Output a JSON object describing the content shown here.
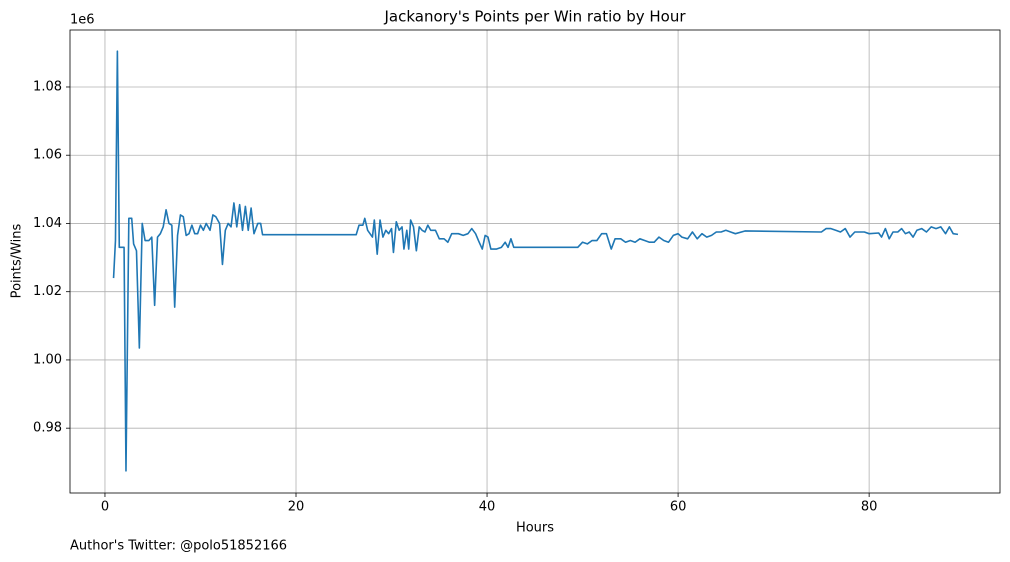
{
  "chart_data": {
    "type": "line",
    "title": "Jackanory's Points per Win ratio by Hour",
    "x_label": "Hours",
    "y_label": "Points/Wins",
    "y_offset_text": "1e6",
    "footnote": "Author's Twitter: @polo51852166",
    "color": "#1f77b4",
    "grid": true,
    "xlim": [
      -3.66,
      93.7
    ],
    "ylim": [
      0.961,
      1.0967
    ],
    "xticks": [
      0,
      20,
      40,
      60,
      80
    ],
    "yticks": [
      0.98,
      {
        "value": 1,
        "label": "1.00"
      },
      1.02,
      1.04,
      1.06,
      1.08
    ],
    "x": [
      0.9,
      1.1,
      1.3,
      1.5,
      2.0,
      2.2,
      2.5,
      2.8,
      3.0,
      3.3,
      3.6,
      3.9,
      4.2,
      4.6,
      4.9,
      5.2,
      5.5,
      5.8,
      6.1,
      6.4,
      6.7,
      7.0,
      7.3,
      7.6,
      7.9,
      8.2,
      8.5,
      8.8,
      9.1,
      9.4,
      9.7,
      10.0,
      10.3,
      10.6,
      11.0,
      11.3,
      11.6,
      12.0,
      12.3,
      12.6,
      12.9,
      13.2,
      13.5,
      13.8,
      14.1,
      14.4,
      14.7,
      15.0,
      15.3,
      15.6,
      16.0,
      16.3,
      16.5,
      26.3,
      26.6,
      27.0,
      27.2,
      27.5,
      28.0,
      28.2,
      28.5,
      28.8,
      29.1,
      29.4,
      29.7,
      30.0,
      30.2,
      30.5,
      30.8,
      31.1,
      31.3,
      31.6,
      31.8,
      32.0,
      32.3,
      32.6,
      32.9,
      33.2,
      33.5,
      33.8,
      34.1,
      34.6,
      35.0,
      35.5,
      35.9,
      36.3,
      37.0,
      37.5,
      38.0,
      38.4,
      38.8,
      39.1,
      39.5,
      39.8,
      40.1,
      40.4,
      41.0,
      41.5,
      41.9,
      42.2,
      42.5,
      42.8,
      49.5,
      50.0,
      50.5,
      51.0,
      51.5,
      52.0,
      52.5,
      53.0,
      53.4,
      54.0,
      54.5,
      55.0,
      55.5,
      56.0,
      56.5,
      57.0,
      57.5,
      58.0,
      58.5,
      59.0,
      59.5,
      60.0,
      60.4,
      61.0,
      61.5,
      62.0,
      62.5,
      63.0,
      63.5,
      64.0,
      64.5,
      65.0,
      65.5,
      66.0,
      67.0,
      75.0,
      75.5,
      76.0,
      76.5,
      77.0,
      77.5,
      78.0,
      78.5,
      79.5,
      80.0,
      81.0,
      81.3,
      81.7,
      82.1,
      82.5,
      83.0,
      83.4,
      83.8,
      84.2,
      84.6,
      85.0,
      85.5,
      86.0,
      86.5,
      87.0,
      87.5,
      88.0,
      88.4,
      88.8,
      89.3
    ],
    "values": [
      1.024,
      1.035,
      1.0905,
      1.033,
      1.033,
      0.9675,
      1.0415,
      1.0415,
      1.034,
      1.032,
      1.0035,
      1.04,
      1.035,
      1.035,
      1.036,
      1.016,
      1.036,
      1.037,
      1.039,
      1.044,
      1.04,
      1.0395,
      1.0155,
      1.0365,
      1.0425,
      1.042,
      1.0365,
      1.037,
      1.0395,
      1.037,
      1.037,
      1.0395,
      1.038,
      1.04,
      1.038,
      1.0425,
      1.042,
      1.04,
      1.028,
      1.038,
      1.04,
      1.039,
      1.046,
      1.039,
      1.0455,
      1.038,
      1.045,
      1.038,
      1.0445,
      1.037,
      1.04,
      1.04,
      1.0367,
      1.0367,
      1.0395,
      1.0395,
      1.0415,
      1.038,
      1.036,
      1.041,
      1.031,
      1.041,
      1.036,
      1.038,
      1.037,
      1.0385,
      1.0315,
      1.0405,
      1.038,
      1.039,
      1.0325,
      1.038,
      1.0325,
      1.041,
      1.039,
      1.032,
      1.039,
      1.038,
      1.0375,
      1.0395,
      1.038,
      1.038,
      1.0355,
      1.0355,
      1.0345,
      1.037,
      1.037,
      1.0365,
      1.037,
      1.0385,
      1.037,
      1.035,
      1.0325,
      1.0365,
      1.036,
      1.0325,
      1.0325,
      1.033,
      1.0345,
      1.033,
      1.0355,
      1.033,
      1.033,
      1.0345,
      1.034,
      1.035,
      1.035,
      1.037,
      1.037,
      1.0325,
      1.0355,
      1.0355,
      1.0345,
      1.035,
      1.0345,
      1.0355,
      1.035,
      1.0345,
      1.0345,
      1.036,
      1.035,
      1.0345,
      1.0365,
      1.037,
      1.036,
      1.0355,
      1.0375,
      1.0355,
      1.037,
      1.036,
      1.0365,
      1.0375,
      1.0375,
      1.038,
      1.0375,
      1.037,
      1.0378,
      1.0375,
      1.0385,
      1.0385,
      1.038,
      1.0375,
      1.0385,
      1.036,
      1.0375,
      1.0375,
      1.037,
      1.0372,
      1.036,
      1.0385,
      1.0355,
      1.0375,
      1.0375,
      1.0385,
      1.037,
      1.0375,
      1.036,
      1.038,
      1.0385,
      1.0375,
      1.039,
      1.0385,
      1.039,
      1.037,
      1.039,
      1.037,
      1.0368
    ]
  }
}
